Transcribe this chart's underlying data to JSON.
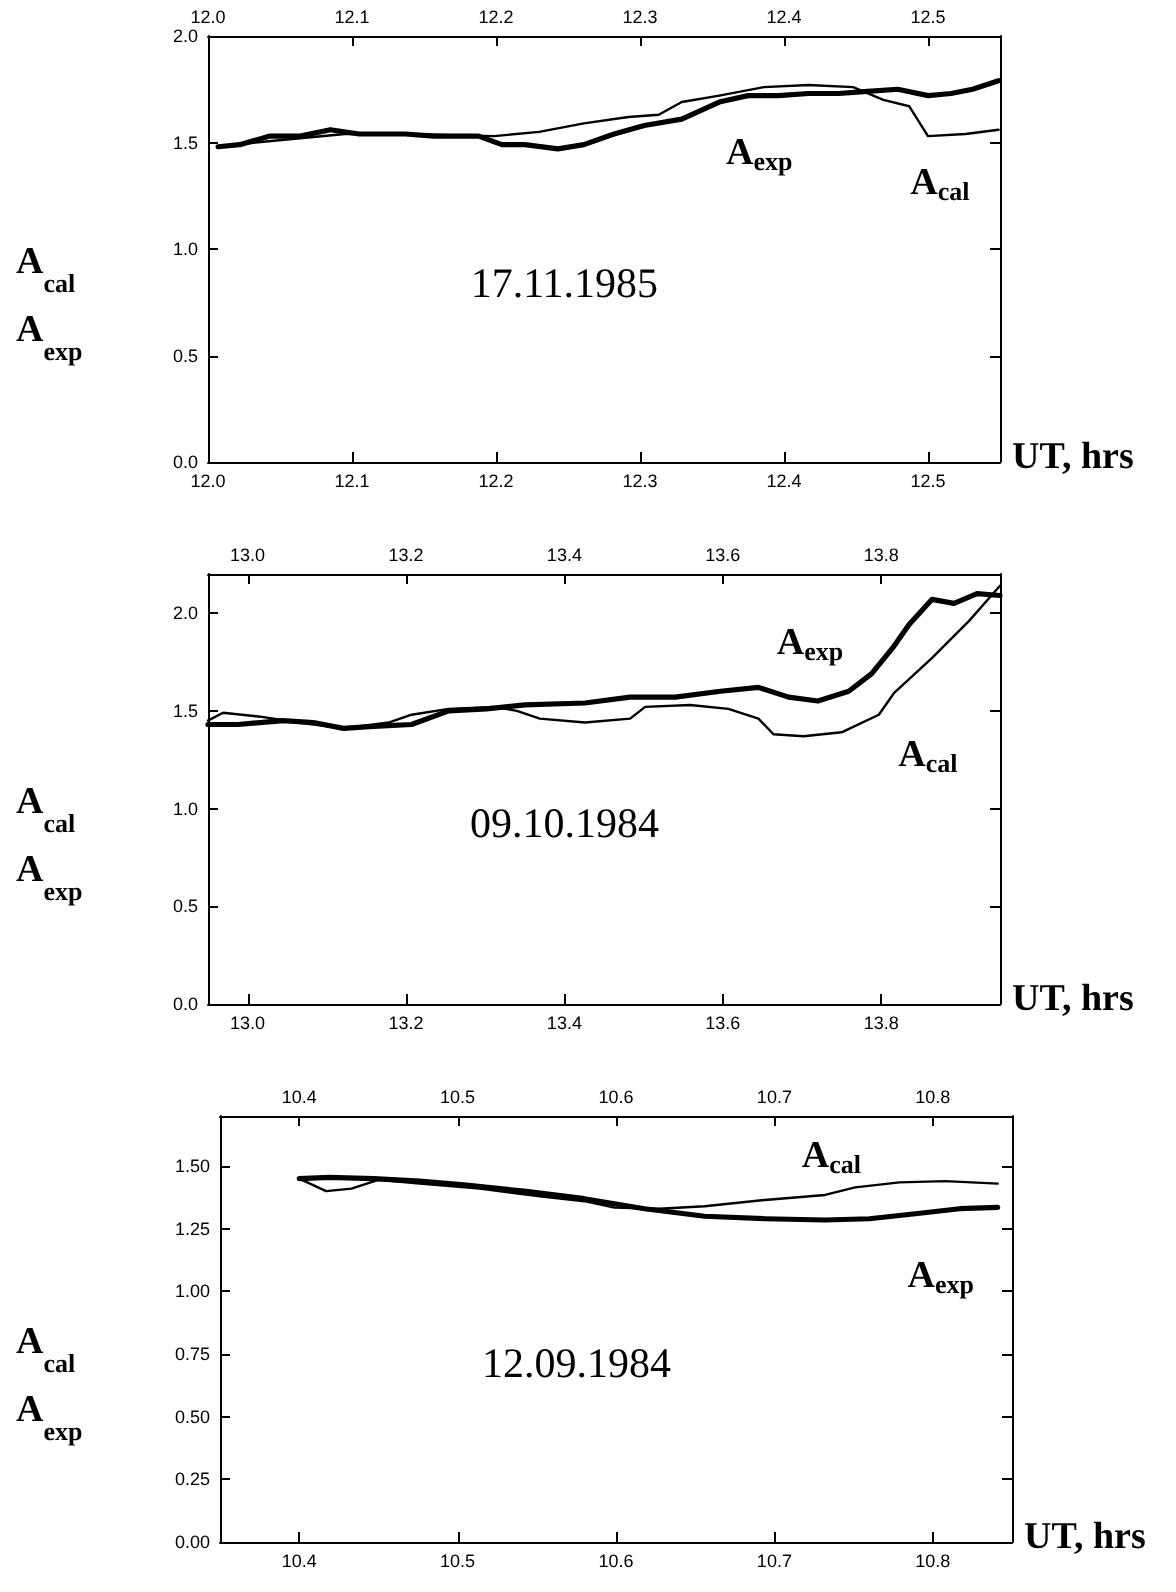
{
  "chart_data": [
    {
      "type": "line",
      "xlabel": "UT, hrs",
      "ylabel": "A$_{cal}$\nA$_{exp}$",
      "xlim": [
        12.0,
        12.55
      ],
      "xticks": [
        {
          "value": 12.0,
          "label": "12.0"
        },
        12.1,
        12.2,
        12.3,
        12.4,
        12.5
      ],
      "x2lim": [
        12.0,
        12.55
      ],
      "x2ticks": [
        {
          "value": 12.0,
          "label": "12.0"
        },
        12.1,
        12.2,
        12.3,
        12.4,
        12.5
      ],
      "ylim": [
        0,
        2.0
      ],
      "yticks": [
        {
          "value": 0,
          "label": "0.0"
        },
        0.5,
        {
          "value": 1,
          "label": "1.0"
        },
        1.5,
        {
          "value": 2,
          "label": "2.0"
        }
      ],
      "grid": false,
      "legend": "right",
      "marker": "none",
      "line_style": "solid",
      "series": [
        {
          "name": "A$_{exp}$",
          "color": "#000000",
          "x": [
            12.007,
            12.022,
            12.043,
            12.064,
            12.085,
            12.105,
            12.137,
            12.157,
            12.188,
            12.204,
            12.22,
            12.243,
            12.261,
            12.282,
            12.303,
            12.329,
            12.355,
            12.375,
            12.396,
            12.417,
            12.438,
            12.458,
            12.479,
            12.5,
            12.516,
            12.531,
            12.549
          ],
          "values": [
            1.48,
            1.49,
            1.53,
            1.53,
            1.56,
            1.54,
            1.54,
            1.53,
            1.53,
            1.49,
            1.49,
            1.47,
            1.49,
            1.54,
            1.58,
            1.61,
            1.69,
            1.72,
            1.72,
            1.73,
            1.73,
            1.74,
            1.75,
            1.72,
            1.73,
            1.75,
            1.79
          ]
        },
        {
          "name": "A$_{cal}$",
          "color": "#000000",
          "x": [
            12.007,
            12.033,
            12.064,
            12.095,
            12.137,
            12.199,
            12.23,
            12.261,
            12.292,
            12.313,
            12.329,
            12.355,
            12.386,
            12.417,
            12.448,
            12.469,
            12.487,
            12.5,
            12.526,
            12.549
          ],
          "values": [
            1.48,
            1.5,
            1.52,
            1.54,
            1.54,
            1.53,
            1.55,
            1.59,
            1.62,
            1.63,
            1.69,
            1.72,
            1.76,
            1.77,
            1.76,
            1.7,
            1.67,
            1.53,
            1.54,
            1.56
          ]
        }
      ],
      "annotations": [
        "17.11.1985"
      ]
    },
    {
      "type": "line",
      "xlabel": "UT, hrs",
      "ylabel": "A$_{cal}$\nA$_{exp}$",
      "xlim": [
        12.95,
        13.95
      ],
      "xticks": [
        {
          "value": 13.0,
          "label": "13.0"
        },
        13.2,
        13.4,
        13.6,
        13.8
      ],
      "x2lim": [
        12.95,
        13.95
      ],
      "x2ticks": [
        {
          "value": 13.0,
          "label": "13.0"
        },
        13.2,
        13.4,
        13.6,
        13.8
      ],
      "ylim": [
        0,
        2.2
      ],
      "yticks": [
        {
          "value": 0,
          "label": "0.0"
        },
        0.5,
        {
          "value": 1,
          "label": "1.0"
        },
        1.5,
        {
          "value": 2,
          "label": "2.0"
        }
      ],
      "grid": false,
      "legend": "top right",
      "marker": "none",
      "line_style": "solid",
      "series": [
        {
          "name": "A$_{exp}$",
          "color": "#000000",
          "x": [
            12.95,
            12.988,
            13.045,
            13.083,
            13.121,
            13.159,
            13.207,
            13.254,
            13.302,
            13.35,
            13.426,
            13.483,
            13.54,
            13.597,
            13.645,
            13.683,
            13.72,
            13.759,
            13.788,
            13.816,
            13.835,
            13.864,
            13.892,
            13.921,
            13.95
          ],
          "values": [
            1.43,
            1.43,
            1.45,
            1.44,
            1.41,
            1.42,
            1.43,
            1.5,
            1.51,
            1.53,
            1.54,
            1.57,
            1.57,
            1.6,
            1.62,
            1.57,
            1.55,
            1.6,
            1.69,
            1.83,
            1.94,
            2.07,
            2.05,
            2.1,
            2.09
          ]
        },
        {
          "name": "A$_{cal}$",
          "color": "#000000",
          "x": [
            12.95,
            12.969,
            13.016,
            13.064,
            13.121,
            13.178,
            13.207,
            13.254,
            13.311,
            13.34,
            13.369,
            13.426,
            13.483,
            13.502,
            13.559,
            13.607,
            13.645,
            13.664,
            13.702,
            13.75,
            13.797,
            13.816,
            13.864,
            13.911,
            13.95
          ],
          "values": [
            1.45,
            1.49,
            1.47,
            1.44,
            1.41,
            1.44,
            1.48,
            1.51,
            1.52,
            1.5,
            1.46,
            1.44,
            1.46,
            1.52,
            1.53,
            1.51,
            1.46,
            1.38,
            1.37,
            1.39,
            1.48,
            1.59,
            1.77,
            1.96,
            2.14
          ]
        }
      ],
      "annotations": [
        "09.10.1984"
      ]
    },
    {
      "type": "line",
      "xlabel": "UT, hrs",
      "ylabel": "A$_{cal}$\nA$_{exp}$",
      "xlim": [
        10.35,
        10.85
      ],
      "xticks": [
        10.4,
        10.5,
        10.6,
        10.7,
        10.8
      ],
      "x2lim": [
        10.35,
        10.85
      ],
      "x2ticks": [
        10.4,
        10.5,
        10.6,
        10.7,
        10.8
      ],
      "ylim": [
        0,
        1.7
      ],
      "yticks": [
        {
          "value": 0,
          "label": "0.00"
        },
        0.25,
        {
          "value": 0.5,
          "label": "0.50"
        },
        0.75,
        {
          "value": 1,
          "label": "1.00"
        },
        1.25,
        {
          "value": 1.5,
          "label": "1.50"
        }
      ],
      "grid": false,
      "legend": "top right",
      "marker": "none",
      "line_style": "solid",
      "series": [
        {
          "name": "A$_{exp}$",
          "color": "#000000",
          "x": [
            10.4,
            10.419,
            10.447,
            10.476,
            10.504,
            10.542,
            10.58,
            10.618,
            10.656,
            10.694,
            10.732,
            10.76,
            10.789,
            10.817,
            10.841
          ],
          "values": [
            1.45,
            1.455,
            1.45,
            1.44,
            1.425,
            1.4,
            1.37,
            1.33,
            1.3,
            1.29,
            1.285,
            1.29,
            1.31,
            1.33,
            1.335
          ]
        },
        {
          "name": "A$_{cal}$",
          "color": "#000000",
          "x": [
            10.4,
            10.417,
            10.433,
            10.45,
            10.476,
            10.514,
            10.552,
            10.58,
            10.599,
            10.627,
            10.656,
            10.694,
            10.732,
            10.751,
            10.779,
            10.808,
            10.841
          ],
          "values": [
            1.45,
            1.4,
            1.41,
            1.445,
            1.43,
            1.41,
            1.38,
            1.36,
            1.335,
            1.33,
            1.34,
            1.365,
            1.385,
            1.415,
            1.435,
            1.44,
            1.43
          ]
        }
      ],
      "annotations": [
        "12.09.1984"
      ]
    }
  ]
}
